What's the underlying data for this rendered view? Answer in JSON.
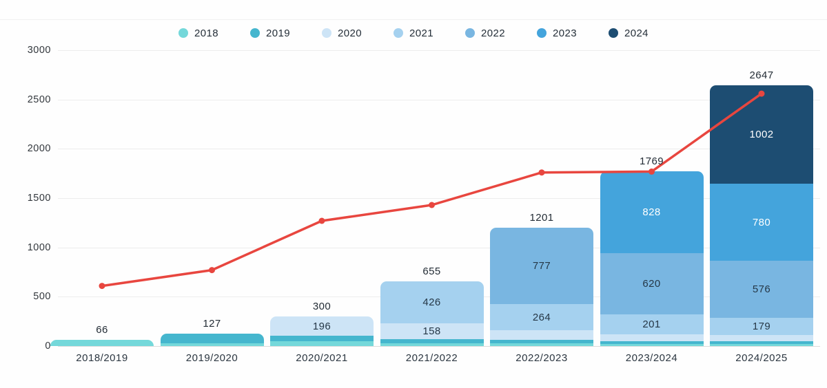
{
  "chart_data": {
    "type": "bar",
    "subtype": "stacked-bars-with-line-overlay",
    "title": "",
    "categories": [
      "2018/2019",
      "2019/2020",
      "2020/2021",
      "2021/2022",
      "2022/2023",
      "2023/2024",
      "2024/2025"
    ],
    "y_axis": {
      "min": 0,
      "max": 3000,
      "tick_interval": 500,
      "ticks": [
        "0",
        "500",
        "1000",
        "1500",
        "2000",
        "2500",
        "3000"
      ],
      "grid": true
    },
    "legend": {
      "position": "top",
      "entries": [
        {
          "label": "2018",
          "color": "#74d8da"
        },
        {
          "label": "2019",
          "color": "#45b6ce"
        },
        {
          "label": "2020",
          "color": "#cde4f6"
        },
        {
          "label": "2021",
          "color": "#a5d1ef"
        },
        {
          "label": "2022",
          "color": "#79b6e1"
        },
        {
          "label": "2023",
          "color": "#44a4dc"
        },
        {
          "label": "2024",
          "color": "#1d4d72"
        }
      ]
    },
    "series_colors": {
      "2018": "#74d8da",
      "2019": "#45b6ce",
      "2020": "#cde4f6",
      "2021": "#a5d1ef",
      "2022": "#79b6e1",
      "2023": "#44a4dc",
      "2024": "#1d4d72"
    },
    "light_label_years": [
      "2023",
      "2024"
    ],
    "bars": [
      {
        "category": "2018/2019",
        "total": 66,
        "segments": [
          {
            "year": "2018",
            "value": 66
          }
        ]
      },
      {
        "category": "2019/2020",
        "total": 127,
        "segments": [
          {
            "year": "2018",
            "value": 30
          },
          {
            "year": "2019",
            "value": 97
          }
        ]
      },
      {
        "category": "2020/2021",
        "total": 300,
        "segments": [
          {
            "year": "2018",
            "value": 46
          },
          {
            "year": "2019",
            "value": 58
          },
          {
            "year": "2020",
            "value": 196,
            "label": "196"
          }
        ]
      },
      {
        "category": "2021/2022",
        "total": 655,
        "segments": [
          {
            "year": "2018",
            "value": 26
          },
          {
            "year": "2019",
            "value": 45
          },
          {
            "year": "2020",
            "value": 158,
            "label": "158"
          },
          {
            "year": "2021",
            "value": 426,
            "label": "426"
          }
        ]
      },
      {
        "category": "2022/2023",
        "total": 1201,
        "segments": [
          {
            "year": "2018",
            "value": 25
          },
          {
            "year": "2019",
            "value": 35
          },
          {
            "year": "2020",
            "value": 100
          },
          {
            "year": "2021",
            "value": 264,
            "label": "264"
          },
          {
            "year": "2022",
            "value": 777,
            "label": "777"
          }
        ]
      },
      {
        "category": "2023/2024",
        "total": 1769,
        "segments": [
          {
            "year": "2018",
            "value": 18
          },
          {
            "year": "2019",
            "value": 32
          },
          {
            "year": "2020",
            "value": 70
          },
          {
            "year": "2021",
            "value": 201,
            "label": "201"
          },
          {
            "year": "2022",
            "value": 620,
            "label": "620"
          },
          {
            "year": "2023",
            "value": 828,
            "label": "828"
          }
        ]
      },
      {
        "category": "2024/2025",
        "total": 2647,
        "segments": [
          {
            "year": "2018",
            "value": 18
          },
          {
            "year": "2019",
            "value": 32
          },
          {
            "year": "2020",
            "value": 60
          },
          {
            "year": "2021",
            "value": 179,
            "label": "179"
          },
          {
            "year": "2022",
            "value": 576,
            "label": "576"
          },
          {
            "year": "2023",
            "value": 780,
            "label": "780"
          },
          {
            "year": "2024",
            "value": 1002,
            "label": "1002"
          }
        ]
      }
    ],
    "line_overlay": {
      "color": "#e8463f",
      "values_estimated": [
        610,
        770,
        1270,
        1430,
        1760,
        1769,
        2560
      ],
      "labels_shown": false
    },
    "text_colors": {
      "dark_segment_label": "#253746",
      "light_segment_label": "#ffffff"
    }
  }
}
